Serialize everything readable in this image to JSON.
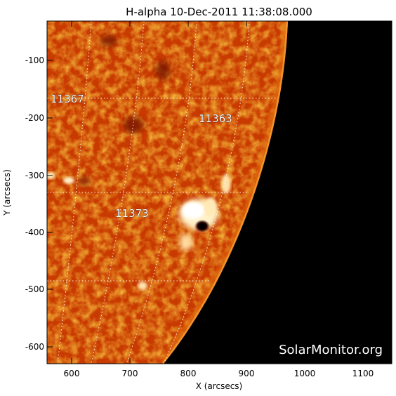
{
  "title": "H-alpha 10-Dec-2011 11:38:08.000",
  "xlabel": "X (arcsecs)",
  "ylabel": "Y (arcsecs)",
  "x_ticks": [
    "600",
    "700",
    "800",
    "900",
    "1000",
    "1100"
  ],
  "y_ticks": [
    "-100",
    "-200",
    "-300",
    "-400",
    "-500",
    "-600"
  ],
  "regions": [
    {
      "label": "11367"
    },
    {
      "label": "11363"
    },
    {
      "label": "11373"
    }
  ],
  "credit": "SolarMonitor.org",
  "colors": {
    "disk": "#c83a00",
    "disk_dark": "#8a1c00",
    "limb": "#f5a23a",
    "plage": "#fff4d8",
    "sky": "#000000",
    "grid": "#ffffff",
    "label_fill": "#ffffff",
    "label_stroke": "#000000"
  }
}
